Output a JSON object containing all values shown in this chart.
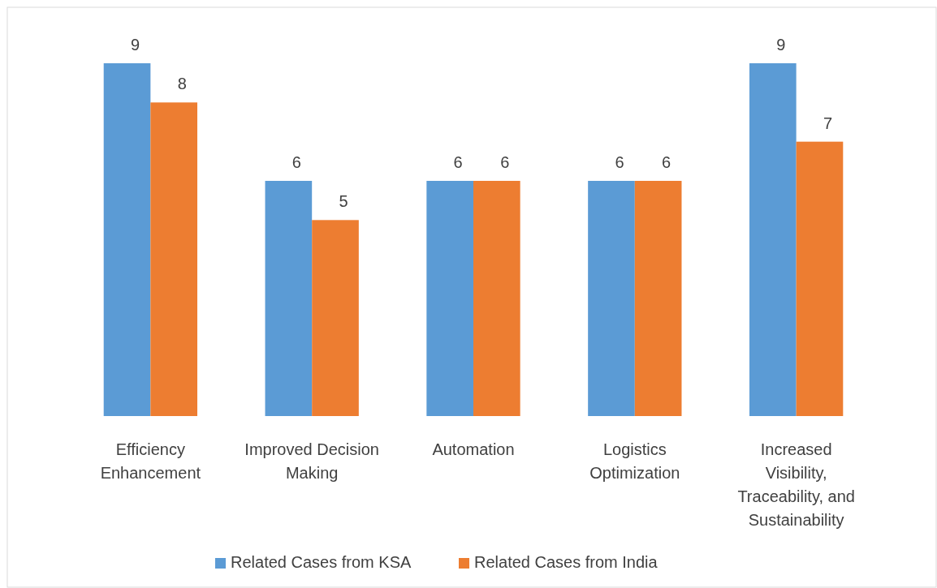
{
  "chart_data": {
    "type": "bar",
    "categories": [
      "Efficiency Enhancement",
      "Improved Decision Making",
      "Automation",
      "Logistics Optimization",
      "Increased Visibility, Traceability, and Sustainability"
    ],
    "series": [
      {
        "name": "Related Cases from KSA",
        "color": "#5b9bd5",
        "values": [
          9,
          6,
          6,
          6,
          9
        ]
      },
      {
        "name": "Related Cases from India",
        "color": "#ed7d31",
        "values": [
          8,
          5,
          6,
          6,
          7
        ]
      }
    ],
    "data_labels": true,
    "legend": "bottom",
    "grid": false
  }
}
